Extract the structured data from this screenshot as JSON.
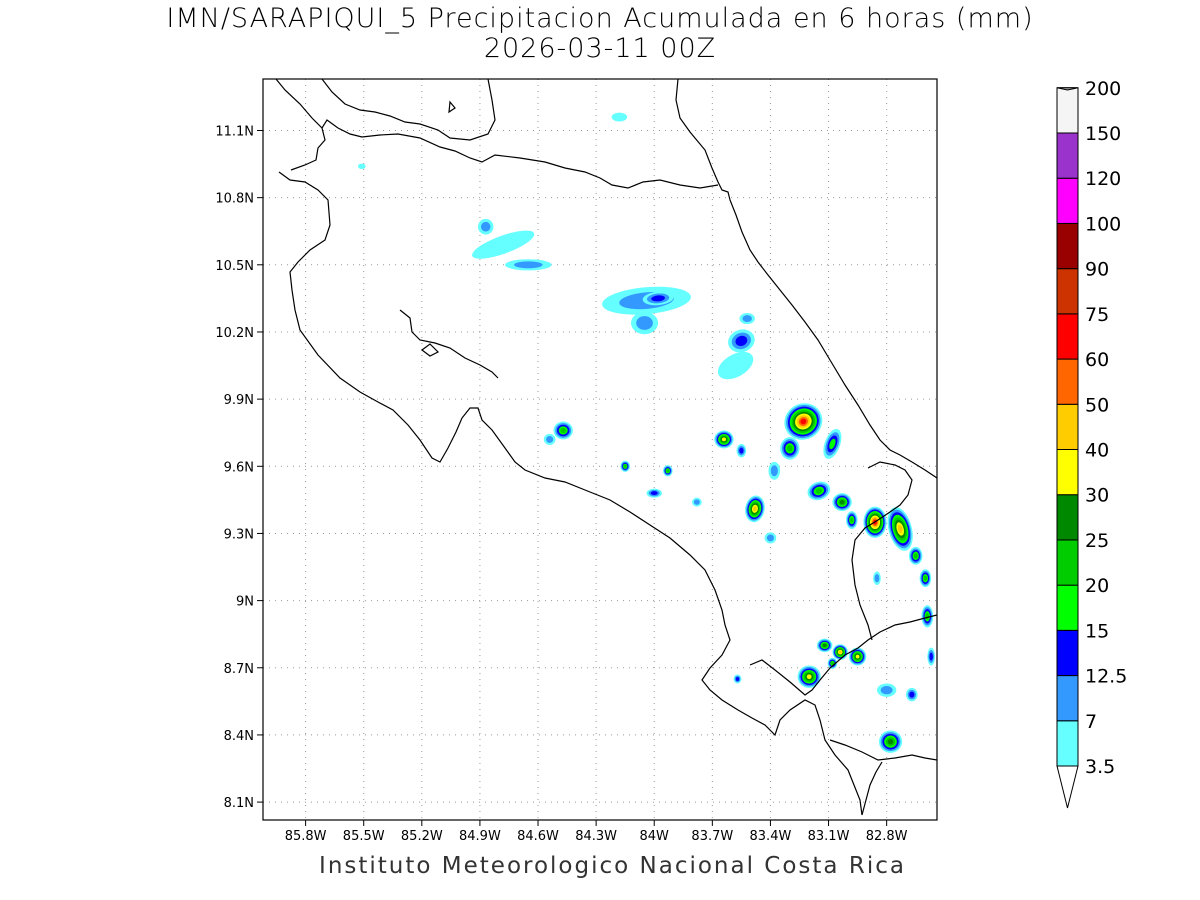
{
  "title": {
    "line1": "IMN/SARAPIQUI_5 Precipitacion Acumulada en 6 horas (mm)",
    "line2": "2026-03-11 00Z"
  },
  "footer": "Instituto Meteorologico Nacional Costa Rica",
  "map": {
    "lon_range": [
      -86.02,
      -82.54
    ],
    "lat_range": [
      8.02,
      11.33
    ],
    "lon_ticks": [
      {
        "value": -85.8,
        "label": "85.8W"
      },
      {
        "value": -85.5,
        "label": "85.5W"
      },
      {
        "value": -85.2,
        "label": "85.2W"
      },
      {
        "value": -84.9,
        "label": "84.9W"
      },
      {
        "value": -84.6,
        "label": "84.6W"
      },
      {
        "value": -84.3,
        "label": "84.3W"
      },
      {
        "value": -84.0,
        "label": "84W"
      },
      {
        "value": -83.7,
        "label": "83.7W"
      },
      {
        "value": -83.4,
        "label": "83.4W"
      },
      {
        "value": -83.1,
        "label": "83.1W"
      },
      {
        "value": -82.8,
        "label": "82.8W"
      }
    ],
    "lat_ticks": [
      {
        "value": 8.1,
        "label": "8.1N"
      },
      {
        "value": 8.4,
        "label": "8.4N"
      },
      {
        "value": 8.7,
        "label": "8.7N"
      },
      {
        "value": 9.0,
        "label": "9N"
      },
      {
        "value": 9.3,
        "label": "9.3N"
      },
      {
        "value": 9.6,
        "label": "9.6N"
      },
      {
        "value": 9.9,
        "label": "9.9N"
      },
      {
        "value": 10.2,
        "label": "10.2N"
      },
      {
        "value": 10.5,
        "label": "10.5N"
      },
      {
        "value": 10.8,
        "label": "10.8N"
      },
      {
        "value": 11.1,
        "label": "11.1N"
      }
    ],
    "grid": true,
    "grid_style": "dotted"
  },
  "legend": {
    "placement": "right",
    "levels": [
      {
        "label": "3.5",
        "color": "#66ffff"
      },
      {
        "label": "7",
        "color": "#3399ff"
      },
      {
        "label": "12.5",
        "color": "#0000ff"
      },
      {
        "label": "15",
        "color": "#00ff00"
      },
      {
        "label": "20",
        "color": "#00cc00"
      },
      {
        "label": "25",
        "color": "#008800"
      },
      {
        "label": "30",
        "color": "#ffff00"
      },
      {
        "label": "40",
        "color": "#ffcc00"
      },
      {
        "label": "50",
        "color": "#ff6600"
      },
      {
        "label": "60",
        "color": "#ff0000"
      },
      {
        "label": "75",
        "color": "#cc3300"
      },
      {
        "label": "90",
        "color": "#990000"
      },
      {
        "label": "100",
        "color": "#ff00ff"
      },
      {
        "label": "120",
        "color": "#9933cc"
      },
      {
        "label": "150",
        "color": "#f5f5f5"
      },
      {
        "label": "200",
        "color": "#aaaaaa"
      }
    ]
  },
  "precip_cells": [
    {
      "lon": -84.04,
      "lat": 10.34,
      "rx": 0.23,
      "ry": 0.06,
      "rot": -5,
      "level": 1
    },
    {
      "lon": -83.98,
      "lat": 10.35,
      "rx": 0.08,
      "ry": 0.03,
      "rot": -5,
      "level": 2
    },
    {
      "lon": -84.05,
      "lat": 10.24,
      "rx": 0.07,
      "ry": 0.05,
      "rot": 0,
      "level": 1
    },
    {
      "lon": -84.78,
      "lat": 10.59,
      "rx": 0.17,
      "ry": 0.04,
      "rot": -20,
      "level": 0
    },
    {
      "lon": -84.65,
      "lat": 10.5,
      "rx": 0.12,
      "ry": 0.025,
      "rot": 0,
      "level": 1
    },
    {
      "lon": -84.87,
      "lat": 10.67,
      "rx": 0.04,
      "ry": 0.035,
      "rot": 0,
      "level": 1
    },
    {
      "lon": -84.18,
      "lat": 11.16,
      "rx": 0.04,
      "ry": 0.02,
      "rot": 0,
      "level": 0
    },
    {
      "lon": -83.55,
      "lat": 10.16,
      "rx": 0.07,
      "ry": 0.05,
      "rot": -20,
      "level": 2
    },
    {
      "lon": -83.58,
      "lat": 10.05,
      "rx": 0.1,
      "ry": 0.05,
      "rot": -30,
      "level": 0
    },
    {
      "lon": -83.52,
      "lat": 10.26,
      "rx": 0.04,
      "ry": 0.025,
      "rot": 0,
      "level": 1
    },
    {
      "lon": -83.23,
      "lat": 9.8,
      "rx": 0.1,
      "ry": 0.08,
      "rot": -30,
      "level": 9
    },
    {
      "lon": -83.3,
      "lat": 9.68,
      "rx": 0.05,
      "ry": 0.05,
      "rot": 0,
      "level": 4
    },
    {
      "lon": -83.08,
      "lat": 9.7,
      "rx": 0.04,
      "ry": 0.07,
      "rot": 20,
      "level": 3
    },
    {
      "lon": -83.64,
      "lat": 9.72,
      "rx": 0.05,
      "ry": 0.04,
      "rot": 0,
      "level": 6
    },
    {
      "lon": -83.48,
      "lat": 9.41,
      "rx": 0.05,
      "ry": 0.06,
      "rot": 10,
      "level": 7
    },
    {
      "lon": -83.15,
      "lat": 9.49,
      "rx": 0.06,
      "ry": 0.04,
      "rot": -20,
      "level": 4
    },
    {
      "lon": -83.03,
      "lat": 9.44,
      "rx": 0.05,
      "ry": 0.04,
      "rot": 0,
      "level": 5
    },
    {
      "lon": -82.98,
      "lat": 9.36,
      "rx": 0.03,
      "ry": 0.04,
      "rot": 0,
      "level": 4
    },
    {
      "lon": -82.86,
      "lat": 9.35,
      "rx": 0.06,
      "ry": 0.07,
      "rot": 0,
      "level": 9
    },
    {
      "lon": -82.73,
      "lat": 9.32,
      "rx": 0.06,
      "ry": 0.1,
      "rot": -15,
      "level": 7
    },
    {
      "lon": -82.65,
      "lat": 9.2,
      "rx": 0.035,
      "ry": 0.04,
      "rot": 0,
      "level": 4
    },
    {
      "lon": -82.6,
      "lat": 9.1,
      "rx": 0.03,
      "ry": 0.04,
      "rot": 0,
      "level": 4
    },
    {
      "lon": -82.59,
      "lat": 8.93,
      "rx": 0.03,
      "ry": 0.05,
      "rot": 0,
      "level": 4
    },
    {
      "lon": -82.57,
      "lat": 8.75,
      "rx": 0.02,
      "ry": 0.04,
      "rot": 0,
      "level": 2
    },
    {
      "lon": -82.95,
      "lat": 8.75,
      "rx": 0.045,
      "ry": 0.04,
      "rot": 0,
      "level": 6
    },
    {
      "lon": -83.04,
      "lat": 8.77,
      "rx": 0.04,
      "ry": 0.035,
      "rot": 0,
      "level": 7
    },
    {
      "lon": -83.12,
      "lat": 8.8,
      "rx": 0.04,
      "ry": 0.03,
      "rot": 0,
      "level": 5
    },
    {
      "lon": -83.2,
      "lat": 8.66,
      "rx": 0.06,
      "ry": 0.05,
      "rot": 0,
      "level": 6
    },
    {
      "lon": -83.08,
      "lat": 8.72,
      "rx": 0.025,
      "ry": 0.025,
      "rot": 0,
      "level": 4
    },
    {
      "lon": -82.78,
      "lat": 8.37,
      "rx": 0.06,
      "ry": 0.05,
      "rot": 0,
      "level": 5
    },
    {
      "lon": -82.67,
      "lat": 8.58,
      "rx": 0.03,
      "ry": 0.03,
      "rot": 0,
      "level": 2
    },
    {
      "lon": -82.8,
      "lat": 8.6,
      "rx": 0.05,
      "ry": 0.03,
      "rot": 0,
      "level": 1
    },
    {
      "lon": -84.47,
      "lat": 9.76,
      "rx": 0.05,
      "ry": 0.04,
      "rot": 0,
      "level": 4
    },
    {
      "lon": -84.54,
      "lat": 9.72,
      "rx": 0.03,
      "ry": 0.025,
      "rot": 0,
      "level": 1
    },
    {
      "lon": -84.15,
      "lat": 9.6,
      "rx": 0.025,
      "ry": 0.025,
      "rot": 0,
      "level": 4
    },
    {
      "lon": -83.93,
      "lat": 9.58,
      "rx": 0.025,
      "ry": 0.025,
      "rot": 0,
      "level": 4
    },
    {
      "lon": -84.0,
      "lat": 9.48,
      "rx": 0.04,
      "ry": 0.02,
      "rot": 0,
      "level": 2
    },
    {
      "lon": -83.78,
      "lat": 9.44,
      "rx": 0.025,
      "ry": 0.02,
      "rot": 0,
      "level": 1
    },
    {
      "lon": -83.55,
      "lat": 9.67,
      "rx": 0.025,
      "ry": 0.03,
      "rot": 0,
      "level": 2
    },
    {
      "lon": -83.4,
      "lat": 9.28,
      "rx": 0.03,
      "ry": 0.025,
      "rot": 0,
      "level": 1
    },
    {
      "lon": -83.57,
      "lat": 8.65,
      "rx": 0.02,
      "ry": 0.02,
      "rot": 0,
      "level": 2
    },
    {
      "lon": -82.85,
      "lat": 9.1,
      "rx": 0.02,
      "ry": 0.03,
      "rot": 0,
      "level": 1
    },
    {
      "lon": -83.38,
      "lat": 9.58,
      "rx": 0.03,
      "ry": 0.04,
      "rot": 0,
      "level": 1
    },
    {
      "lon": -85.51,
      "lat": 10.94,
      "rx": 0.02,
      "ry": 0.012,
      "rot": 0,
      "level": 0
    }
  ]
}
